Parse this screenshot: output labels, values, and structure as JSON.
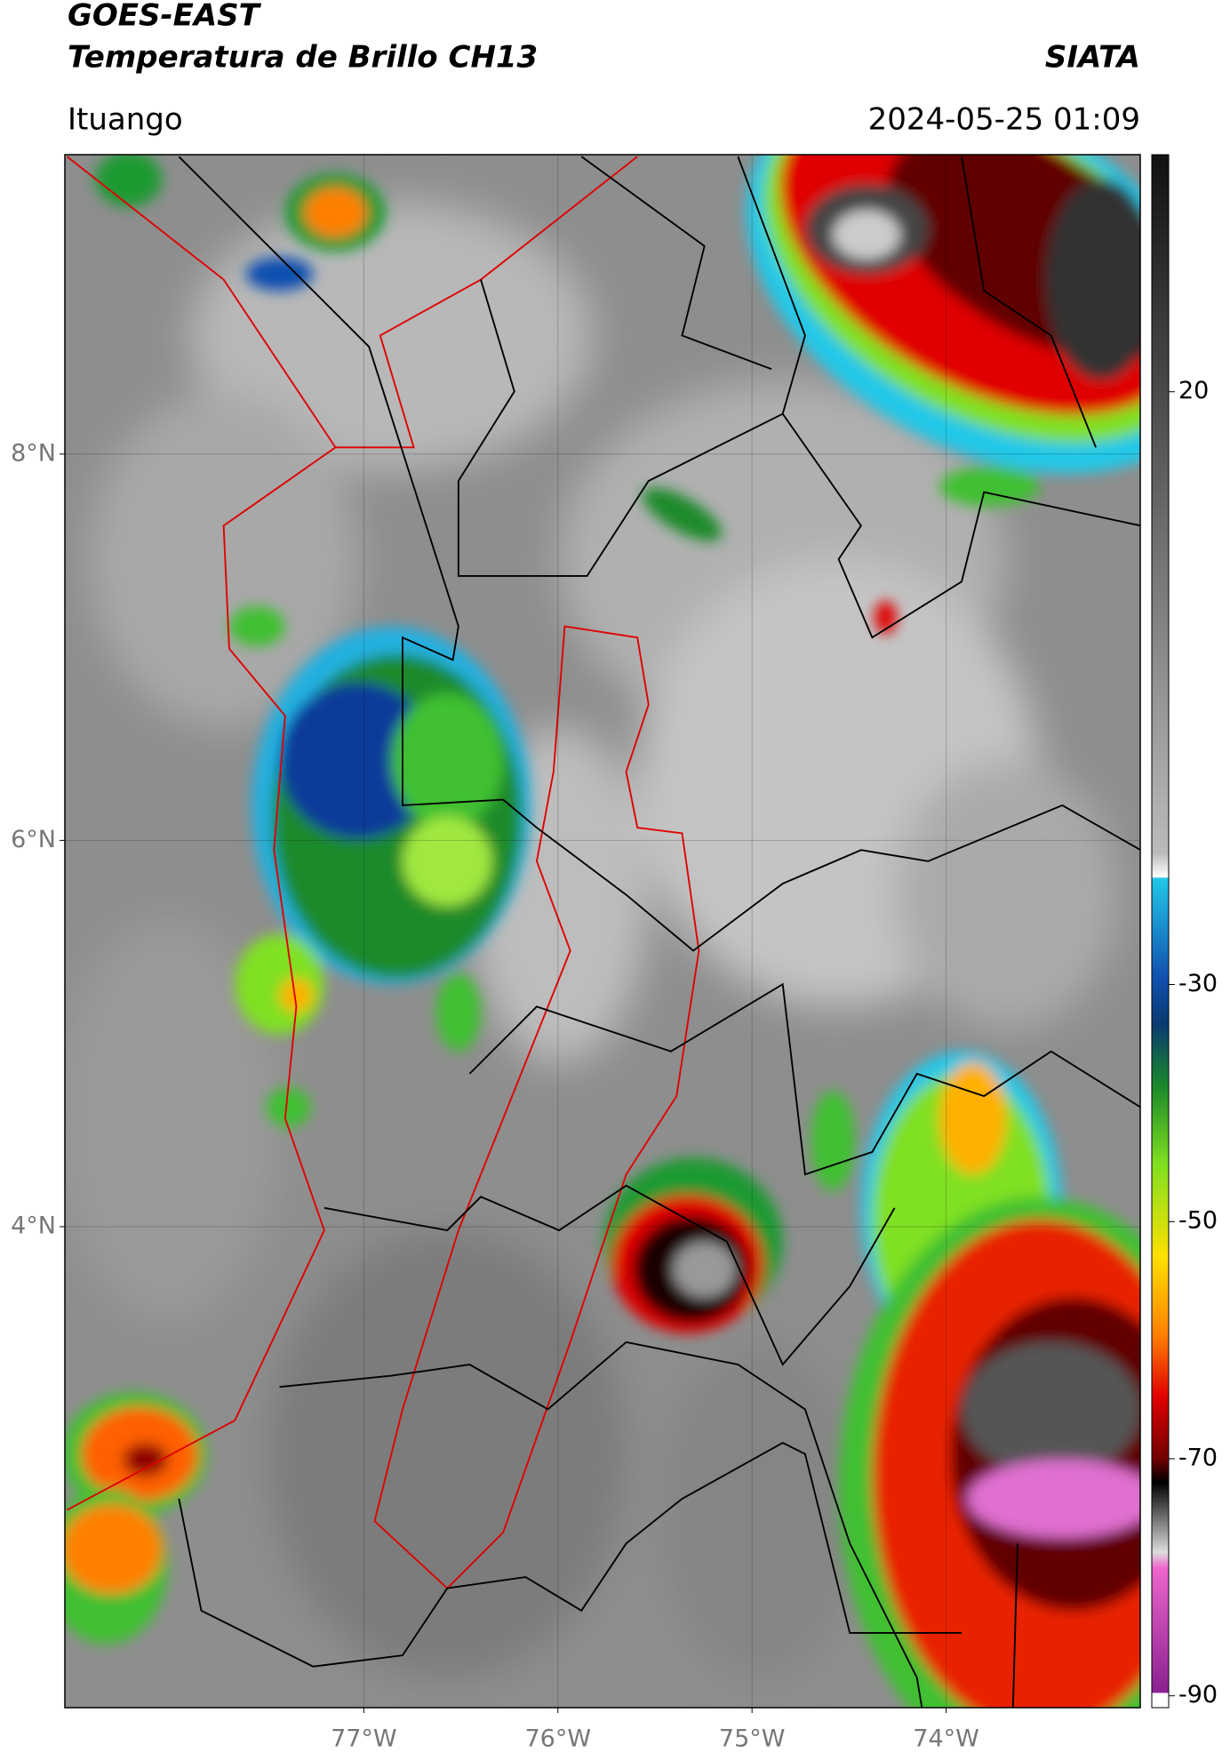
{
  "header": {
    "title_line1": "GOES-EAST",
    "title_line2": "Temperatura de Brillo CH13",
    "brand": "SIATA",
    "location": "Ituango",
    "datetime": "2024-05-25 01:09"
  },
  "map": {
    "xlim": [
      -78.54,
      -73.0
    ],
    "ylim": [
      1.51,
      9.55
    ],
    "xticks": [
      {
        "value": -77,
        "label": "77°W"
      },
      {
        "value": -76,
        "label": "76°W"
      },
      {
        "value": -75,
        "label": "75°W"
      },
      {
        "value": -74,
        "label": "74°W"
      }
    ],
    "yticks": [
      {
        "value": 8,
        "label": "8°N"
      },
      {
        "value": 6,
        "label": "6°N"
      },
      {
        "value": 4,
        "label": "4°N"
      }
    ]
  },
  "colorbar": {
    "lim": [
      -91,
      40
    ],
    "ticks": [
      20,
      -30,
      -50,
      -70,
      -90
    ]
  }
}
